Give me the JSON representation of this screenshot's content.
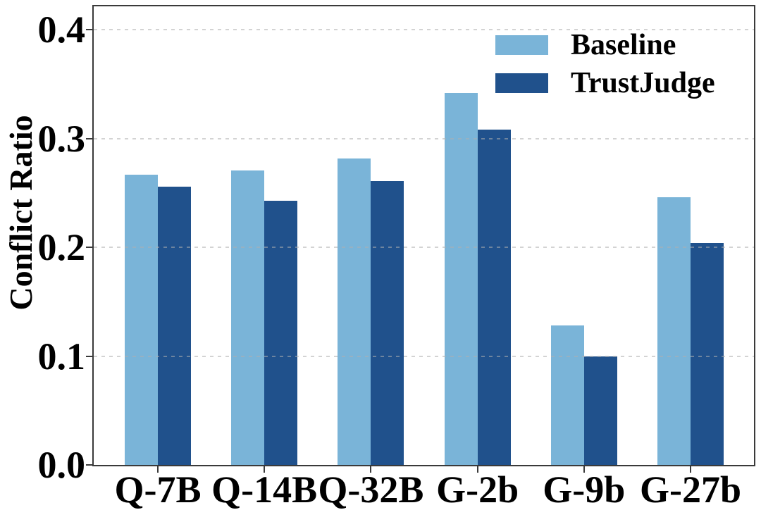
{
  "chart_data": {
    "type": "bar",
    "title": "",
    "categories": [
      "Q-7B",
      "Q-14B",
      "Q-32B",
      "G-2b",
      "G-9b",
      "G-27b"
    ],
    "series": [
      {
        "name": "Baseline",
        "color": "#7AB4D8",
        "values": [
          0.267,
          0.271,
          0.282,
          0.342,
          0.128,
          0.246
        ]
      },
      {
        "name": "TrustJudge",
        "color": "#20518C",
        "values": [
          0.256,
          0.243,
          0.261,
          0.308,
          0.1,
          0.204
        ]
      }
    ],
    "xlabel": "",
    "ylabel": "Conflict Ratio",
    "yticks": [
      0.0,
      0.1,
      0.2,
      0.3,
      0.4
    ],
    "ytick_labels": [
      "0.0",
      "0.1",
      "0.2",
      "0.3",
      "0.4"
    ],
    "ylim": [
      0,
      0.4216
    ],
    "grid": {
      "axis": "y",
      "style": "dashed",
      "color": "#b0b0b0"
    },
    "legend": {
      "position": "upper-right"
    },
    "axis_color": "#3a3a3a",
    "background": "#ffffff"
  }
}
